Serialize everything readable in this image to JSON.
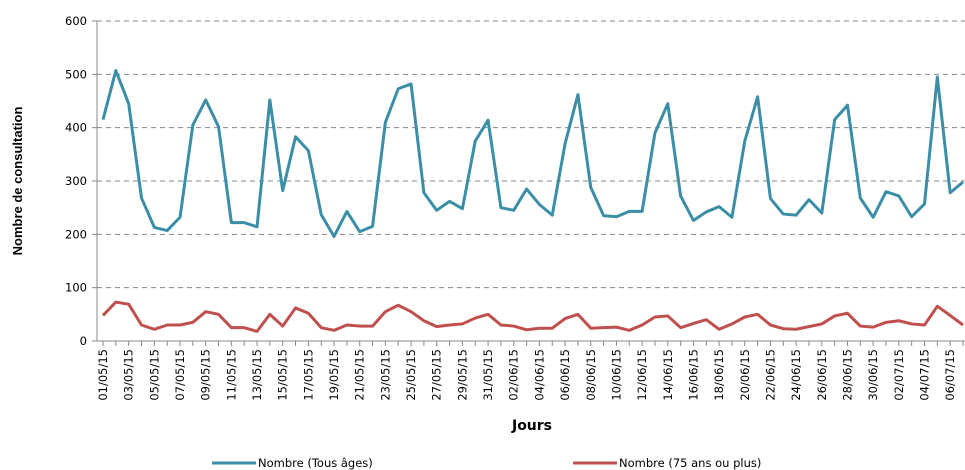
{
  "chart_data": {
    "type": "line",
    "y_label": "Nombre de consultation",
    "x_label": "Jours",
    "categories": [
      "01/05/15",
      null,
      "03/05/15",
      null,
      "05/05/15",
      null,
      "07/05/15",
      null,
      "09/05/15",
      null,
      "11/05/15",
      null,
      "13/05/15",
      null,
      "15/05/15",
      null,
      "17/05/15",
      null,
      "19/05/15",
      null,
      "21/05/15",
      null,
      "23/05/15",
      null,
      "25/05/15",
      null,
      "27/05/15",
      null,
      "29/05/15",
      null,
      "31/05/15",
      null,
      "02/06/15",
      null,
      "04/06/15",
      null,
      "06/06/15",
      null,
      "08/06/15",
      null,
      "10/06/15",
      null,
      "12/06/15",
      null,
      "14/06/15",
      null,
      "16/06/15",
      null,
      "18/06/15",
      null,
      "20/06/15",
      null,
      "22/06/15",
      null,
      "24/06/15",
      null,
      "26/06/15",
      null,
      "28/06/15",
      null,
      "30/06/15",
      null,
      "02/07/15",
      null,
      "04/07/15",
      null,
      "06/07/15",
      null
    ],
    "series": [
      {
        "name": "Nombre (Tous âges)",
        "color": "#3b8ea5",
        "values": [
          415,
          507,
          445,
          268,
          213,
          207,
          232,
          405,
          452,
          402,
          222,
          222,
          214,
          452,
          282,
          383,
          357,
          237,
          196,
          243,
          205,
          215,
          410,
          473,
          482,
          278,
          245,
          262,
          248,
          375,
          414,
          250,
          245,
          285,
          256,
          236,
          370,
          462,
          288,
          235,
          233,
          243,
          243,
          390,
          445,
          272,
          226,
          242,
          252,
          232,
          375,
          458,
          267,
          238,
          236,
          265,
          240,
          415,
          442,
          268,
          232,
          280,
          272,
          233,
          257,
          495,
          278,
          298
        ]
      },
      {
        "name": "Nombre (75 ans ou plus)",
        "color": "#c0504d",
        "values": [
          48,
          73,
          69,
          30,
          22,
          30,
          30,
          35,
          55,
          50,
          25,
          25,
          18,
          50,
          28,
          62,
          52,
          25,
          20,
          30,
          28,
          28,
          55,
          67,
          55,
          38,
          27,
          30,
          32,
          43,
          50,
          30,
          28,
          21,
          24,
          24,
          42,
          50,
          24,
          25,
          26,
          20,
          30,
          45,
          47,
          25,
          33,
          40,
          22,
          32,
          45,
          50,
          30,
          23,
          22,
          27,
          32,
          47,
          52,
          28,
          26,
          35,
          38,
          32,
          30,
          65,
          48,
          30
        ]
      }
    ],
    "ylim": [
      0,
      600
    ],
    "yticks": [
      0,
      100,
      200,
      300,
      400,
      500,
      600
    ],
    "grid": true
  }
}
